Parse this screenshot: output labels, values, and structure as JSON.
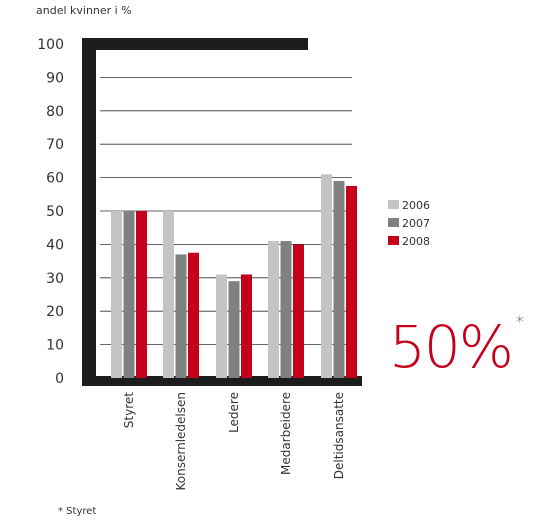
{
  "subtitle": "andel kvinner i %",
  "footnote": "* Styret",
  "highlight": {
    "value": "50%",
    "marker": "*"
  },
  "colors": {
    "2006": "#c4c4c4",
    "2007": "#808080",
    "2008": "#c4001a",
    "frame": "#1c1c1c"
  },
  "chart_data": {
    "type": "bar",
    "title": "",
    "xlabel": "",
    "ylabel": "andel kvinner i %",
    "ylim": [
      0,
      100
    ],
    "yticks": [
      0,
      10,
      20,
      30,
      40,
      50,
      60,
      70,
      80,
      90,
      100
    ],
    "grid": true,
    "legend": "right",
    "categories": [
      "Styret",
      "Konsernledelsen",
      "Ledere",
      "Medarbeidere",
      "Deltidsansatte"
    ],
    "series": [
      {
        "name": "2006",
        "values": [
          50,
          50,
          31,
          41,
          61
        ]
      },
      {
        "name": "2007",
        "values": [
          50,
          37,
          29,
          41,
          59
        ]
      },
      {
        "name": "2008",
        "values": [
          50,
          37.5,
          31,
          40,
          57.5
        ]
      }
    ]
  }
}
